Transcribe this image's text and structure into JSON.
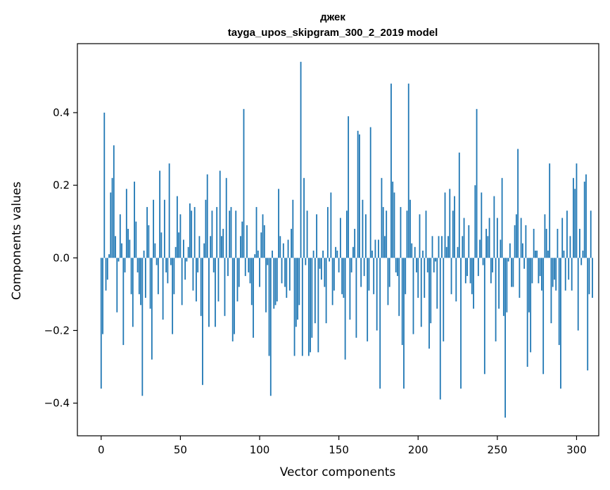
{
  "chart_data": {
    "type": "bar",
    "title": "джек",
    "subtitle": "tayga_upos_skipgram_300_2_2019 model",
    "xlabel": "Vector components",
    "ylabel": "Components values",
    "xlim": [
      -15,
      314
    ],
    "ylim": [
      -0.49,
      0.59
    ],
    "xticks": [
      0,
      50,
      100,
      150,
      200,
      250,
      300
    ],
    "yticks": [
      -0.4,
      -0.2,
      0.0,
      0.2,
      0.4
    ],
    "ytick_labels": [
      "−0.4",
      "−0.2",
      "0.0",
      "0.2",
      "0.4"
    ],
    "bar_color": "#1f77b4",
    "grid": false,
    "series": [
      {
        "values": [
          -0.36,
          -0.21,
          0.4,
          -0.09,
          -0.06,
          0.01,
          0.18,
          0.22,
          0.31,
          0.06,
          -0.15,
          -0.01,
          0.12,
          0.04,
          -0.24,
          -0.04,
          0.19,
          0.08,
          0.05,
          -0.1,
          -0.19,
          0.21,
          0.1,
          -0.04,
          -0.1,
          -0.13,
          -0.38,
          0.02,
          -0.11,
          0.14,
          0.09,
          -0.14,
          -0.28,
          0.16,
          0.04,
          -0.02,
          -0.1,
          0.24,
          0.07,
          -0.17,
          0.16,
          -0.04,
          -0.07,
          0.26,
          -0.02,
          -0.21,
          -0.1,
          0.03,
          0.17,
          0.07,
          0.12,
          -0.13,
          0.05,
          -0.06,
          -0.01,
          0.03,
          0.15,
          0.13,
          -0.09,
          0.14,
          -0.12,
          -0.04,
          0.06,
          -0.16,
          -0.35,
          0.04,
          0.16,
          0.23,
          -0.19,
          0.06,
          0.13,
          -0.04,
          -0.19,
          0.14,
          -0.12,
          0.24,
          0.06,
          0.08,
          -0.16,
          0.22,
          -0.05,
          0.13,
          0.14,
          -0.23,
          -0.21,
          0.13,
          -0.12,
          -0.08,
          0.06,
          0.1,
          0.41,
          -0.05,
          0.09,
          -0.04,
          -0.07,
          -0.13,
          -0.22,
          0.01,
          0.14,
          0.02,
          -0.08,
          0.07,
          0.12,
          0.09,
          -0.15,
          -0.02,
          -0.27,
          -0.38,
          0.02,
          -0.14,
          -0.13,
          -0.12,
          0.19,
          0.06,
          -0.07,
          0.04,
          -0.08,
          -0.11,
          0.05,
          -0.09,
          0.08,
          0.16,
          -0.27,
          -0.19,
          -0.17,
          -0.13,
          0.54,
          -0.27,
          0.22,
          -0.02,
          0.13,
          -0.27,
          -0.26,
          -0.22,
          0.02,
          -0.18,
          0.12,
          -0.26,
          -0.03,
          -0.06,
          0.02,
          -0.08,
          -0.18,
          0.14,
          -0.01,
          0.18,
          -0.13,
          -0.09,
          0.03,
          0.02,
          -0.04,
          0.11,
          -0.1,
          -0.11,
          -0.28,
          0.13,
          0.39,
          -0.17,
          -0.04,
          0.03,
          0.08,
          -0.22,
          0.35,
          0.34,
          -0.08,
          0.16,
          -0.05,
          0.12,
          -0.23,
          -0.09,
          0.36,
          0.02,
          -0.1,
          0.05,
          -0.2,
          0.05,
          -0.36,
          0.22,
          0.14,
          0.06,
          0.13,
          -0.13,
          -0.08,
          0.48,
          0.21,
          0.18,
          -0.04,
          -0.05,
          -0.16,
          0.14,
          -0.24,
          -0.36,
          -0.1,
          0.13,
          0.48,
          0.16,
          0.04,
          -0.21,
          0.03,
          -0.04,
          -0.11,
          0.12,
          -0.19,
          0.02,
          -0.11,
          0.13,
          -0.04,
          -0.25,
          -0.18,
          0.06,
          -0.04,
          -0.01,
          -0.14,
          0.06,
          -0.39,
          0.06,
          -0.23,
          0.18,
          0.03,
          0.06,
          0.19,
          -0.1,
          0.13,
          0.17,
          -0.12,
          0.03,
          0.29,
          -0.36,
          0.06,
          0.11,
          -0.07,
          -0.05,
          0.09,
          -0.07,
          -0.1,
          -0.14,
          0.2,
          0.41,
          -0.05,
          0.05,
          0.18,
          -0.02,
          -0.32,
          0.08,
          0.06,
          0.11,
          -0.07,
          -0.04,
          0.17,
          -0.23,
          0.11,
          -0.14,
          0.05,
          0.22,
          -0.16,
          -0.44,
          -0.15,
          -0.01,
          0.04,
          -0.08,
          -0.08,
          0.09,
          0.12,
          0.3,
          -0.11,
          0.11,
          0.04,
          -0.03,
          0.09,
          -0.3,
          -0.15,
          -0.26,
          -0.07,
          0.08,
          0.02,
          0.02,
          -0.07,
          -0.05,
          -0.09,
          -0.32,
          0.12,
          0.08,
          0.02,
          0.26,
          -0.18,
          -0.08,
          -0.06,
          -0.09,
          0.08,
          -0.24,
          -0.36,
          0.11,
          0.02,
          -0.09,
          0.13,
          -0.06,
          0.06,
          -0.09,
          0.22,
          0.19,
          0.26,
          -0.2,
          0.08,
          -0.02,
          0.02,
          0.21,
          0.23,
          -0.31,
          -0.1,
          0.13,
          -0.11
        ]
      }
    ]
  }
}
